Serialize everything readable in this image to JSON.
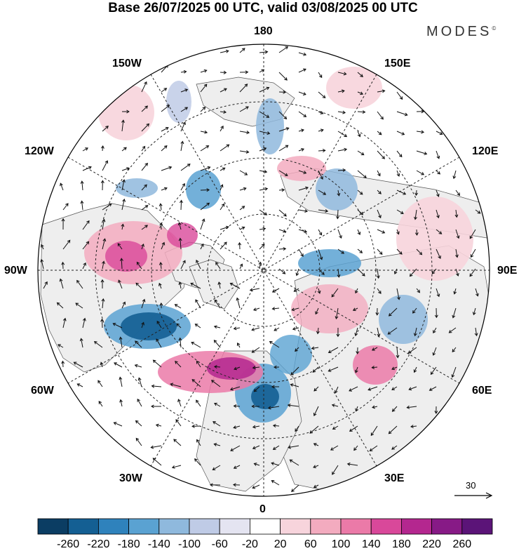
{
  "title": "Base 26/07/2025 00 UTC, valid 03/08/2025 00 UTC",
  "brand": "MODES",
  "brand_mark": "©",
  "lon_labels": {
    "top": "180",
    "bottom": "0",
    "left": "90W",
    "right": "90E",
    "upper_left": "150W",
    "upper_right": "150E",
    "mid_upper_left": "120W",
    "mid_upper_right": "120E",
    "mid_lower_left": "60W",
    "mid_lower_right": "60E",
    "lower_left": "30W",
    "lower_right": "30E"
  },
  "reference_vector": {
    "value": "30",
    "icon": "reference-arrow-icon"
  },
  "colorbar": {
    "labels": [
      "-260",
      "-220",
      "-180",
      "-140",
      "-100",
      "-60",
      "-20",
      "20",
      "60",
      "100",
      "140",
      "180",
      "220",
      "260"
    ],
    "colors": [
      "#0b3d63",
      "#145f93",
      "#2f82bc",
      "#5aa2d2",
      "#8fb9dd",
      "#bfcbe6",
      "#e4e4f1",
      "#ffffff",
      "#f7d4dc",
      "#f3abbf",
      "#eb7aa8",
      "#d9489a",
      "#b4278f",
      "#871a86",
      "#5b1478"
    ]
  },
  "colors": {
    "land": "#f0f0f0",
    "ocean": "#ffffff",
    "coast": "#555555",
    "grid": "#222222"
  }
}
